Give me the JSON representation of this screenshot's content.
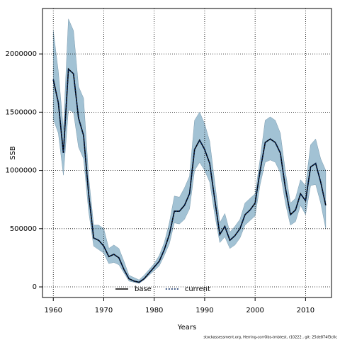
{
  "chart_data": {
    "type": "line",
    "xlabel": "Years",
    "ylabel": "SSB",
    "footnote": "stockassessment.org, Herring-corrObs-tmbtest, r10222 , git: 25de874f3c0c",
    "x": [
      1960,
      1961,
      1962,
      1963,
      1964,
      1965,
      1966,
      1967,
      1968,
      1969,
      1970,
      1971,
      1972,
      1973,
      1974,
      1975,
      1976,
      1977,
      1978,
      1979,
      1980,
      1981,
      1982,
      1983,
      1984,
      1985,
      1986,
      1987,
      1988,
      1989,
      1990,
      1991,
      1992,
      1993,
      1994,
      1995,
      1996,
      1997,
      1998,
      1999,
      2000,
      2001,
      2002,
      2003,
      2004,
      2005,
      2006,
      2007,
      2008,
      2009,
      2010,
      2011,
      2012,
      2013,
      2014
    ],
    "xlim": [
      1957.86,
      2015.14
    ],
    "ylim": [
      -91000,
      2390000
    ],
    "xticks": [
      1960,
      1970,
      1980,
      1990,
      2000,
      2010
    ],
    "yticks": [
      0,
      500000,
      1000000,
      1500000,
      2000000
    ],
    "grid": true,
    "legend": "bottom",
    "band": {
      "color": "#a2c2d4",
      "upper": [
        2200000,
        1850000,
        1350000,
        2300000,
        2200000,
        1720000,
        1620000,
        950000,
        530000,
        530000,
        500000,
        330000,
        360000,
        330000,
        220000,
        100000,
        80000,
        60000,
        100000,
        150000,
        200000,
        270000,
        380000,
        550000,
        780000,
        770000,
        850000,
        950000,
        1430000,
        1500000,
        1400000,
        1250000,
        900000,
        550000,
        630000,
        470000,
        520000,
        580000,
        720000,
        760000,
        800000,
        1100000,
        1430000,
        1460000,
        1430000,
        1320000,
        990000,
        720000,
        760000,
        920000,
        870000,
        1220000,
        1270000,
        1100000,
        1000000
      ],
      "lower": [
        1440000,
        1320000,
        960000,
        1520000,
        1500000,
        1200000,
        1100000,
        650000,
        350000,
        320000,
        290000,
        200000,
        210000,
        190000,
        120000,
        50000,
        40000,
        30000,
        60000,
        100000,
        140000,
        180000,
        270000,
        370000,
        550000,
        540000,
        580000,
        670000,
        1000000,
        1070000,
        1000000,
        900000,
        620000,
        380000,
        430000,
        330000,
        360000,
        420000,
        530000,
        570000,
        610000,
        880000,
        1070000,
        1090000,
        1070000,
        980000,
        720000,
        530000,
        560000,
        700000,
        620000,
        870000,
        880000,
        720000,
        500000
      ]
    },
    "series": [
      {
        "name": "base",
        "color": "#000000",
        "dash": "none",
        "values": [
          1780000,
          1580000,
          1150000,
          1870000,
          1830000,
          1450000,
          1300000,
          800000,
          420000,
          400000,
          350000,
          260000,
          280000,
          250000,
          150000,
          70000,
          50000,
          40000,
          70000,
          120000,
          170000,
          220000,
          320000,
          450000,
          650000,
          650000,
          700000,
          800000,
          1180000,
          1260000,
          1180000,
          1060000,
          750000,
          450000,
          520000,
          400000,
          440000,
          500000,
          620000,
          660000,
          720000,
          1000000,
          1240000,
          1270000,
          1240000,
          1150000,
          850000,
          620000,
          660000,
          800000,
          740000,
          1030000,
          1060000,
          900000,
          700000
        ]
      },
      {
        "name": "current",
        "color": "#00225a",
        "dash": "2 2",
        "values": [
          1780000,
          1580000,
          1150000,
          1870000,
          1830000,
          1450000,
          1300000,
          800000,
          420000,
          400000,
          350000,
          260000,
          280000,
          250000,
          150000,
          70000,
          50000,
          40000,
          70000,
          120000,
          170000,
          220000,
          320000,
          450000,
          650000,
          650000,
          700000,
          800000,
          1180000,
          1260000,
          1180000,
          1060000,
          750000,
          450000,
          520000,
          400000,
          440000,
          500000,
          620000,
          660000,
          720000,
          1000000,
          1240000,
          1270000,
          1240000,
          1150000,
          850000,
          620000,
          660000,
          800000,
          740000,
          1030000,
          1060000,
          900000,
          700000
        ]
      }
    ]
  }
}
